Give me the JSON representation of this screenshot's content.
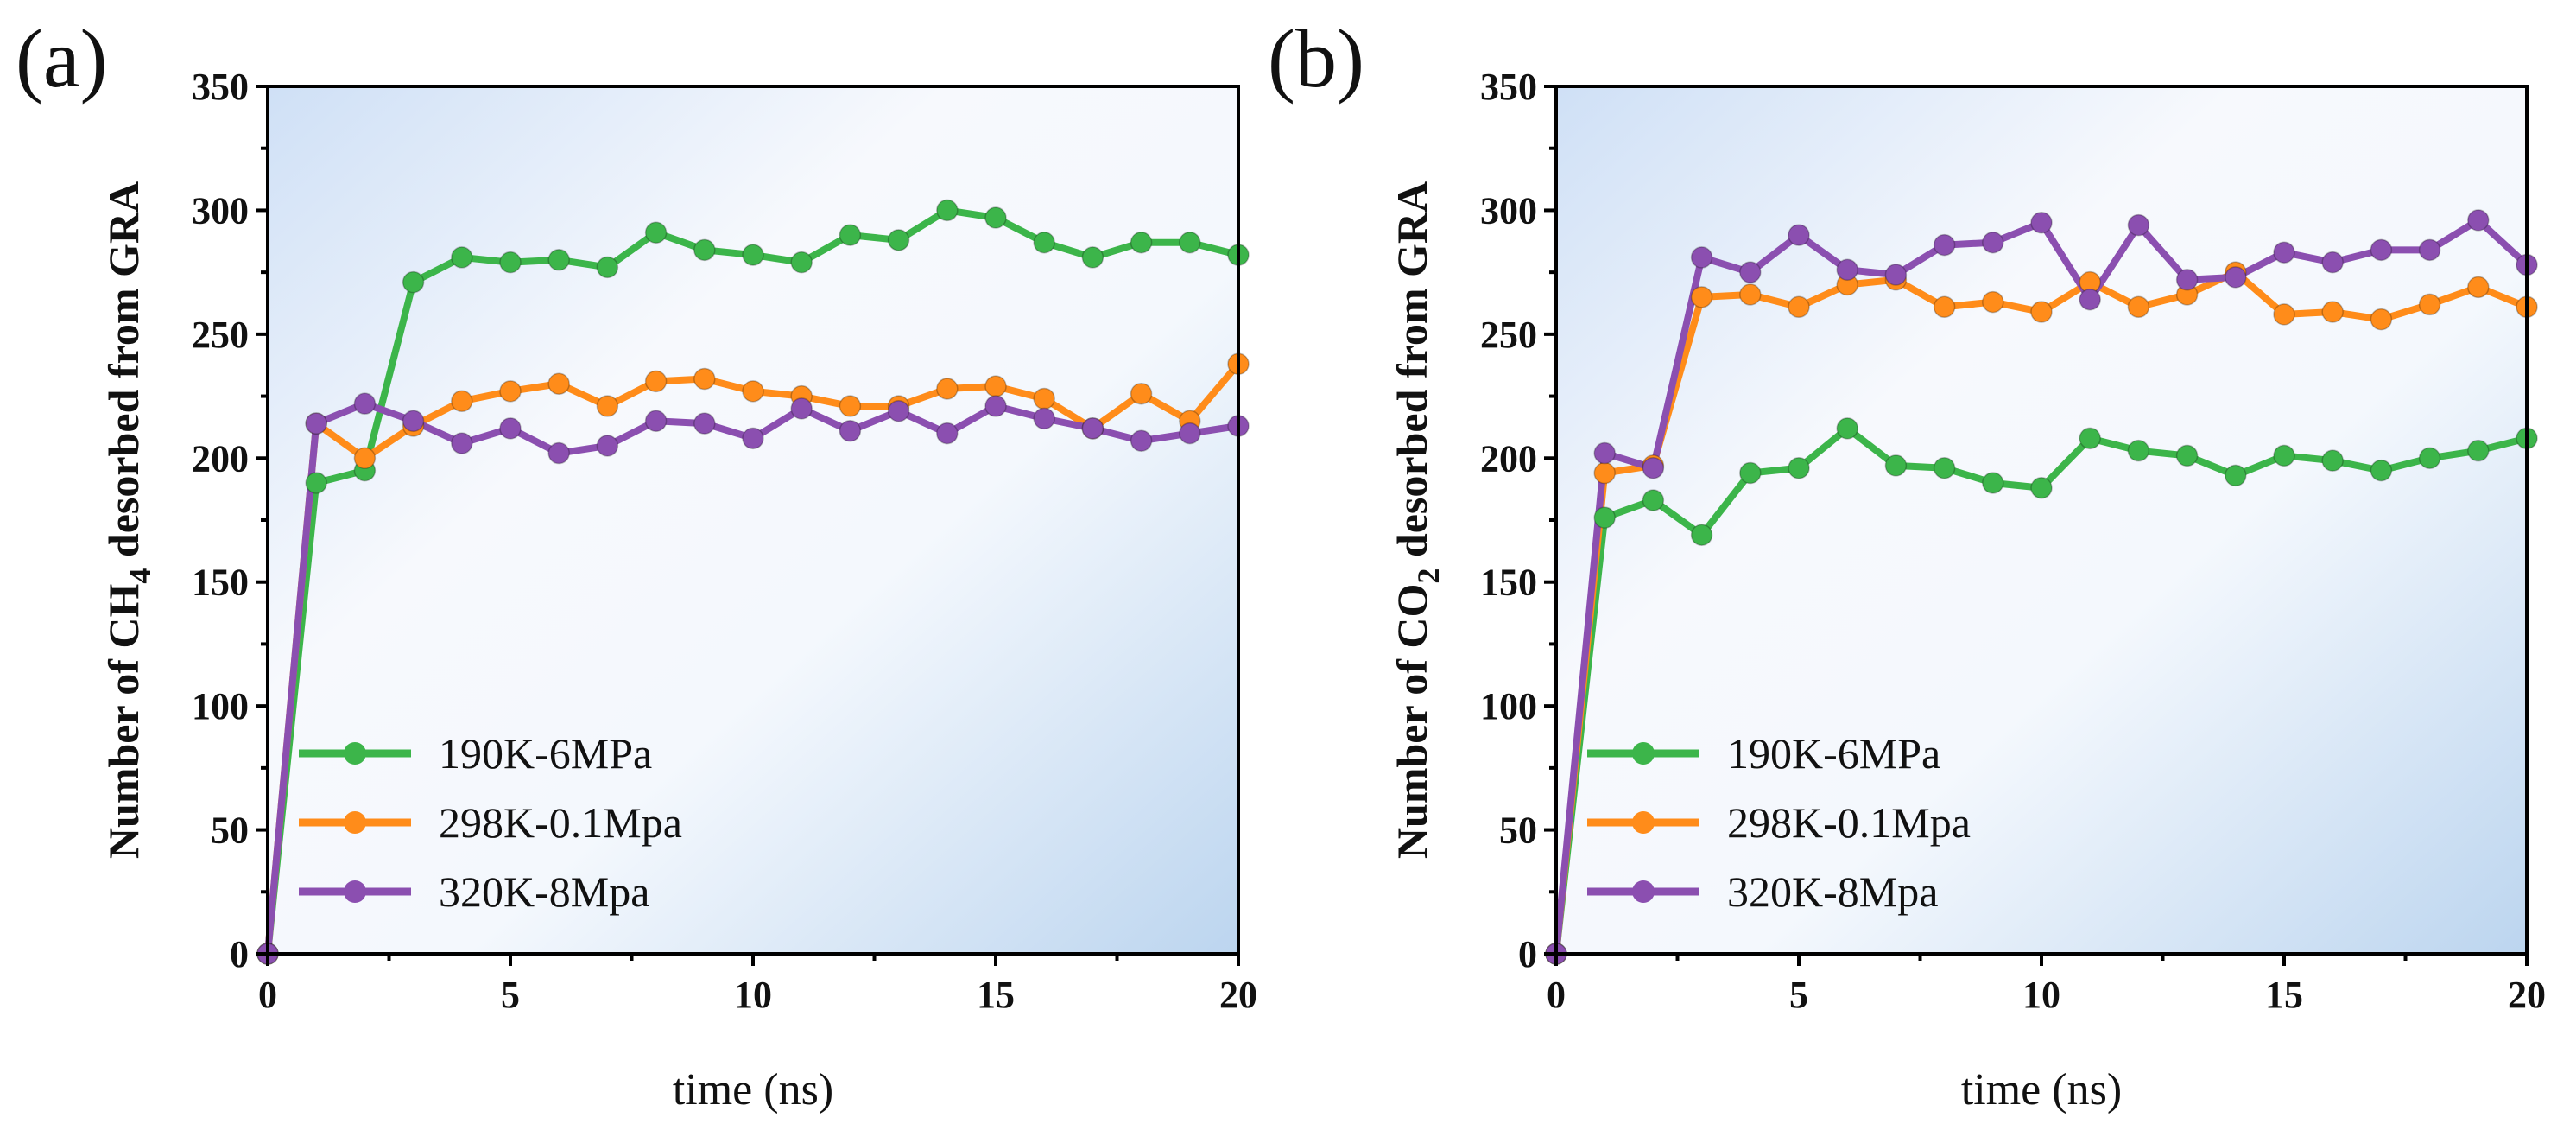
{
  "chart_data": [
    {
      "panel_label": "(a)",
      "type": "line",
      "title": "",
      "xlabel": "time (ns)",
      "ylabel_parts": [
        "Number of CH",
        "4",
        " desorbed from GRA"
      ],
      "xlim": [
        0,
        20
      ],
      "ylim": [
        0,
        350
      ],
      "xticks": [
        0,
        5,
        10,
        15,
        20
      ],
      "yticks": [
        0,
        50,
        100,
        150,
        200,
        250,
        300,
        350
      ],
      "legend_position": "bottom-left",
      "x": [
        0,
        1,
        2,
        3,
        4,
        5,
        6,
        7,
        8,
        9,
        10,
        11,
        12,
        13,
        14,
        15,
        16,
        17,
        18,
        19,
        20
      ],
      "series": [
        {
          "name": "190K-6MPa",
          "color": "#3cb54a",
          "values": [
            0,
            190,
            195,
            271,
            281,
            279,
            280,
            277,
            291,
            284,
            282,
            279,
            290,
            288,
            300,
            297,
            287,
            281,
            287,
            287,
            282
          ]
        },
        {
          "name": "298K-0.1Mpa",
          "color": "#ff8c1a",
          "values": [
            0,
            214,
            200,
            213,
            223,
            227,
            230,
            221,
            231,
            232,
            227,
            225,
            221,
            221,
            228,
            229,
            224,
            212,
            226,
            215,
            238
          ]
        },
        {
          "name": "320K-8Mpa",
          "color": "#8b4fb0",
          "values": [
            0,
            214,
            222,
            215,
            206,
            212,
            202,
            205,
            215,
            214,
            208,
            220,
            211,
            219,
            210,
            221,
            216,
            212,
            207,
            210,
            213
          ]
        }
      ]
    },
    {
      "panel_label": "(b)",
      "type": "line",
      "title": "",
      "xlabel": "time (ns)",
      "ylabel_parts": [
        "Number of CO",
        "2",
        " desorbed from GRA"
      ],
      "xlim": [
        0,
        20
      ],
      "ylim": [
        0,
        350
      ],
      "xticks": [
        0,
        5,
        10,
        15,
        20
      ],
      "yticks": [
        0,
        50,
        100,
        150,
        200,
        250,
        300,
        350
      ],
      "legend_position": "bottom-left",
      "x": [
        0,
        1,
        2,
        3,
        4,
        5,
        6,
        7,
        8,
        9,
        10,
        11,
        12,
        13,
        14,
        15,
        16,
        17,
        18,
        19,
        20
      ],
      "series": [
        {
          "name": "190K-6MPa",
          "color": "#3cb54a",
          "values": [
            0,
            176,
            183,
            169,
            194,
            196,
            212,
            197,
            196,
            190,
            188,
            208,
            203,
            201,
            193,
            201,
            199,
            195,
            200,
            203,
            208
          ]
        },
        {
          "name": "298K-0.1Mpa",
          "color": "#ff8c1a",
          "values": [
            0,
            194,
            197,
            265,
            266,
            261,
            270,
            272,
            261,
            263,
            259,
            271,
            261,
            266,
            275,
            258,
            259,
            256,
            262,
            269,
            261
          ]
        },
        {
          "name": "320K-8Mpa",
          "color": "#8b4fb0",
          "values": [
            0,
            202,
            196,
            281,
            275,
            290,
            276,
            274,
            286,
            287,
            295,
            264,
            294,
            272,
            273,
            283,
            279,
            284,
            284,
            296,
            278
          ]
        }
      ]
    }
  ]
}
